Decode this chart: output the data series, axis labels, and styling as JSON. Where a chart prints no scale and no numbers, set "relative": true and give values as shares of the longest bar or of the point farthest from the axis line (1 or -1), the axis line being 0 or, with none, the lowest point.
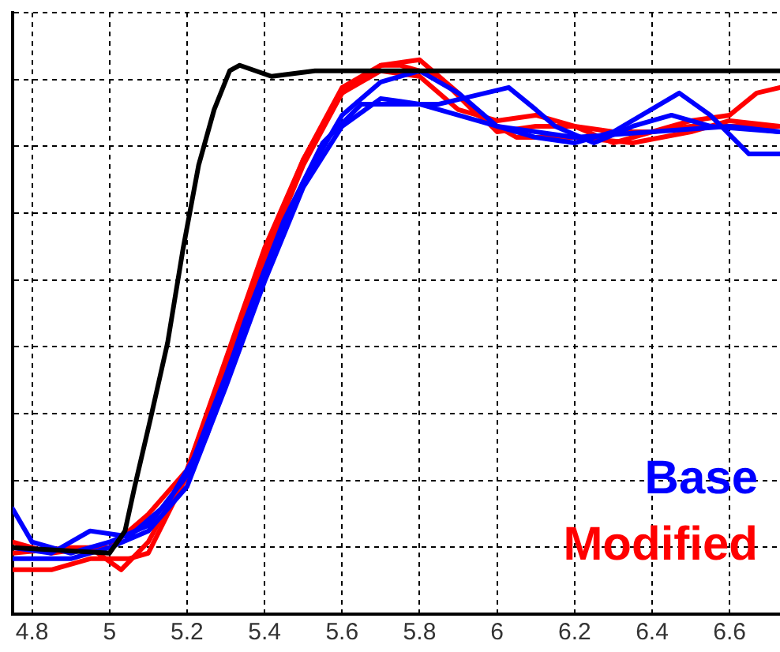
{
  "chart_data": {
    "type": "line",
    "relative": true,
    "xlim": [
      4.75,
      6.73
    ],
    "xticks": [
      4.8,
      5,
      5.2,
      5.4,
      5.6,
      5.8,
      6,
      6.2,
      6.4,
      6.6
    ],
    "grid": true,
    "legend": "bottom right",
    "marker": "none",
    "line_style": "solid",
    "series": [
      {
        "color": "#000000",
        "x": [
          4.75,
          5.0,
          5.04,
          5.065,
          5.105,
          5.15,
          5.19,
          5.23,
          5.27,
          5.31,
          5.336,
          5.418,
          5.53,
          6.73
        ],
        "values": [
          0.12,
          0.11,
          0.15,
          0.23,
          0.35,
          0.49,
          0.66,
          0.81,
          0.91,
          0.98,
          0.99,
          0.97,
          0.98,
          0.98
        ]
      },
      {
        "name": "Base",
        "color": "#0000ff",
        "x": [
          4.75,
          4.8,
          4.9,
          5.0,
          5.1,
          5.2,
          5.3,
          5.4,
          5.5,
          5.6,
          5.7,
          5.8,
          5.9,
          6.0,
          6.1,
          6.2,
          6.3,
          6.47,
          6.55,
          6.65,
          6.73
        ],
        "values": [
          0.19,
          0.13,
          0.11,
          0.13,
          0.16,
          0.25,
          0.43,
          0.62,
          0.78,
          0.9,
          0.96,
          0.98,
          0.94,
          0.88,
          0.86,
          0.85,
          0.87,
          0.94,
          0.9,
          0.83,
          0.83
        ]
      },
      {
        "color": "#0000ff",
        "x": [
          4.75,
          4.85,
          4.95,
          5.05,
          5.15,
          5.25,
          5.35,
          5.45,
          5.55,
          5.65,
          5.75,
          5.85,
          6.03,
          6.1,
          6.15,
          6.25,
          6.35,
          6.45,
          6.55,
          6.73
        ],
        "values": [
          0.12,
          0.11,
          0.15,
          0.14,
          0.2,
          0.32,
          0.53,
          0.71,
          0.85,
          0.92,
          0.92,
          0.92,
          0.95,
          0.91,
          0.88,
          0.85,
          0.88,
          0.9,
          0.88,
          0.87
        ]
      },
      {
        "color": "#0000ff",
        "x": [
          4.75,
          4.9,
          5.0,
          5.1,
          5.2,
          5.3,
          5.4,
          5.5,
          5.6,
          5.7,
          5.8,
          5.9,
          6.0,
          6.2,
          6.4,
          6.6,
          6.73
        ],
        "values": [
          0.1,
          0.1,
          0.12,
          0.15,
          0.23,
          0.41,
          0.6,
          0.77,
          0.88,
          0.93,
          0.92,
          0.9,
          0.88,
          0.86,
          0.87,
          0.88,
          0.87
        ]
      },
      {
        "name": "Modified",
        "color": "#ff0000",
        "x": [
          4.75,
          4.85,
          4.95,
          5.05,
          5.1,
          5.2,
          5.3,
          5.4,
          5.5,
          5.6,
          5.7,
          5.75,
          5.85,
          5.95,
          6.05,
          6.2,
          6.35,
          6.5,
          6.6,
          6.73
        ],
        "values": [
          0.08,
          0.08,
          0.1,
          0.1,
          0.11,
          0.25,
          0.45,
          0.64,
          0.81,
          0.94,
          0.99,
          0.99,
          0.97,
          0.9,
          0.86,
          0.86,
          0.85,
          0.87,
          0.89,
          0.88
        ]
      },
      {
        "color": "#ff0000",
        "x": [
          4.75,
          4.85,
          4.95,
          5.03,
          5.1,
          5.2,
          5.3,
          5.4,
          5.5,
          5.6,
          5.7,
          5.8,
          5.9,
          6.0,
          6.1,
          6.2,
          6.3,
          6.4,
          6.5,
          6.6,
          6.67,
          6.73
        ],
        "values": [
          0.13,
          0.11,
          0.12,
          0.08,
          0.13,
          0.26,
          0.46,
          0.66,
          0.82,
          0.95,
          0.99,
          1.0,
          0.94,
          0.87,
          0.88,
          0.88,
          0.85,
          0.87,
          0.89,
          0.9,
          0.94,
          0.95
        ]
      },
      {
        "color": "#ff0000",
        "x": [
          4.75,
          4.9,
          5.0,
          5.1,
          5.2,
          5.3,
          5.4,
          5.5,
          5.6,
          5.7,
          5.8,
          5.9,
          6.0,
          6.1,
          6.2,
          6.3,
          6.4,
          6.5,
          6.6,
          6.73
        ],
        "values": [
          0.11,
          0.12,
          0.12,
          0.18,
          0.26,
          0.45,
          0.65,
          0.82,
          0.94,
          0.98,
          0.97,
          0.91,
          0.89,
          0.9,
          0.88,
          0.87,
          0.87,
          0.88,
          0.88,
          0.88
        ]
      }
    ]
  }
}
